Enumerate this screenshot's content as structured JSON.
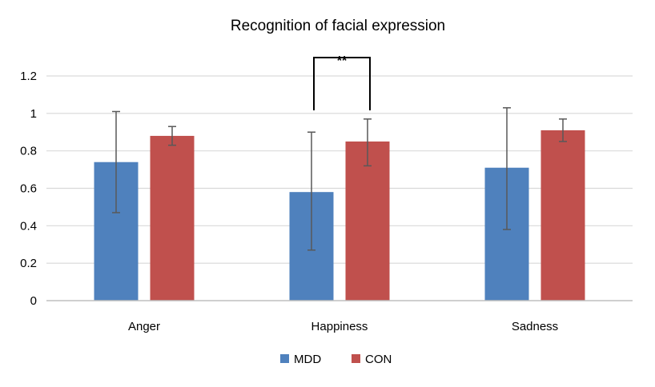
{
  "chart_data": {
    "type": "bar",
    "title": "Recognition of facial expression",
    "xlabel": "",
    "ylabel": "",
    "categories": [
      "Anger",
      "Happiness",
      "Sadness"
    ],
    "ylim": [
      0,
      1.2
    ],
    "yticks": [
      0,
      0.2,
      0.4,
      0.6,
      0.8,
      1,
      1.2
    ],
    "ytick_labels": [
      "0",
      "0.2",
      "0.4",
      "0.6",
      "0.8",
      "1",
      "1.2"
    ],
    "grid": true,
    "legend_position": "bottom-center",
    "series": [
      {
        "name": "MDD",
        "color": "#4f81bd",
        "values": [
          0.74,
          0.58,
          0.71
        ],
        "error_low": [
          0.47,
          0.27,
          0.38
        ],
        "error_high": [
          1.01,
          0.9,
          1.03
        ]
      },
      {
        "name": "CON",
        "color": "#c0504d",
        "values": [
          0.88,
          0.85,
          0.91
        ],
        "error_low": [
          0.83,
          0.72,
          0.85
        ],
        "error_high": [
          0.93,
          0.97,
          0.97
        ]
      }
    ],
    "annotations": [
      {
        "text": "**",
        "category": "Happiness",
        "type": "significance-bracket"
      }
    ]
  }
}
